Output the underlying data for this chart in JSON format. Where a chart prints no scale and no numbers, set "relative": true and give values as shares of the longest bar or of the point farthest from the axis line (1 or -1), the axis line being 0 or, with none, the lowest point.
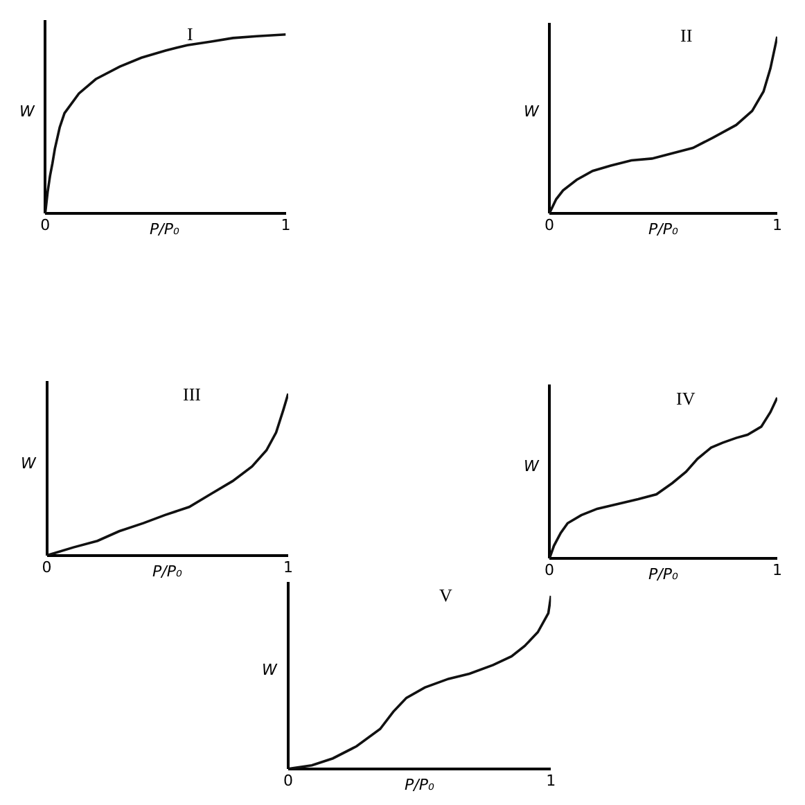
{
  "chart_data": [
    {
      "type": "line",
      "title": "I",
      "xlabel": "P/P₀",
      "ylabel": "W",
      "relative": true,
      "tick_labels": "x",
      "xlim": [
        0,
        1
      ],
      "xticks": [
        0,
        1
      ],
      "x": [
        0,
        0.01,
        0.02,
        0.03,
        0.04,
        0.06,
        0.08,
        0.14,
        0.21,
        0.31,
        0.4,
        0.5,
        0.59,
        0.69,
        0.78,
        0.88,
        1.0
      ],
      "series": [
        {
          "color": "#111111",
          "values": [
            0,
            0.12,
            0.21,
            0.28,
            0.36,
            0.48,
            0.56,
            0.67,
            0.75,
            0.82,
            0.87,
            0.91,
            0.94,
            0.96,
            0.98,
            0.99,
            1.0
          ]
        }
      ]
    },
    {
      "type": "line",
      "title": "II",
      "xlabel": "P/P₀",
      "ylabel": "W",
      "relative": true,
      "tick_labels": "x",
      "xlim": [
        0,
        1
      ],
      "xticks": [
        0,
        1
      ],
      "x": [
        0,
        0.03,
        0.06,
        0.12,
        0.19,
        0.27,
        0.36,
        0.45,
        0.54,
        0.63,
        0.72,
        0.82,
        0.89,
        0.94,
        0.97,
        0.99,
        1.0
      ],
      "series": [
        {
          "color": "#111111",
          "values": [
            0,
            0.08,
            0.13,
            0.19,
            0.24,
            0.27,
            0.3,
            0.31,
            0.34,
            0.37,
            0.43,
            0.5,
            0.58,
            0.69,
            0.82,
            0.94,
            1.0
          ]
        }
      ]
    },
    {
      "type": "line",
      "title": "III",
      "xlabel": "P/P₀",
      "ylabel": "W",
      "relative": true,
      "tick_labels": "x",
      "xlim": [
        0,
        1
      ],
      "xticks": [
        0,
        1
      ],
      "x": [
        0,
        0.11,
        0.21,
        0.3,
        0.4,
        0.49,
        0.59,
        0.68,
        0.77,
        0.85,
        0.91,
        0.95,
        0.98,
        1.0
      ],
      "series": [
        {
          "color": "#111111",
          "values": [
            0,
            0.05,
            0.09,
            0.15,
            0.2,
            0.25,
            0.3,
            0.38,
            0.46,
            0.55,
            0.65,
            0.76,
            0.9,
            1.0
          ]
        }
      ]
    },
    {
      "type": "line",
      "title": "IV",
      "xlabel": "P/P₀",
      "ylabel": "W",
      "relative": true,
      "tick_labels": "x",
      "xlim": [
        0,
        1
      ],
      "xticks": [
        0,
        1
      ],
      "x": [
        0,
        0.02,
        0.05,
        0.08,
        0.14,
        0.21,
        0.3,
        0.39,
        0.47,
        0.54,
        0.6,
        0.65,
        0.71,
        0.76,
        0.82,
        0.87,
        0.93,
        0.97,
        1.0
      ],
      "series": [
        {
          "color": "#111111",
          "values": [
            0,
            0.08,
            0.16,
            0.22,
            0.27,
            0.31,
            0.34,
            0.37,
            0.4,
            0.47,
            0.54,
            0.62,
            0.69,
            0.72,
            0.75,
            0.77,
            0.82,
            0.91,
            1.0
          ]
        }
      ]
    },
    {
      "type": "line",
      "title": "V",
      "xlabel": "P/P₀",
      "ylabel": "W",
      "relative": true,
      "tick_labels": "x",
      "xlim": [
        0,
        1
      ],
      "xticks": [
        0,
        1
      ],
      "x": [
        0,
        0.09,
        0.17,
        0.26,
        0.35,
        0.4,
        0.45,
        0.52,
        0.61,
        0.69,
        0.78,
        0.85,
        0.9,
        0.95,
        0.99,
        1.0
      ],
      "series": [
        {
          "color": "#111111",
          "values": [
            0,
            0.02,
            0.06,
            0.13,
            0.23,
            0.33,
            0.41,
            0.47,
            0.52,
            0.55,
            0.6,
            0.65,
            0.71,
            0.79,
            0.9,
            1.0
          ]
        }
      ]
    }
  ]
}
